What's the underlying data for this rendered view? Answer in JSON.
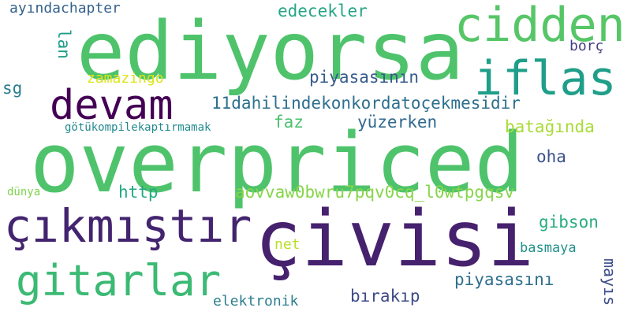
{
  "words": [
    {
      "text": "ediyorsa",
      "color": "#4ec36b"
    },
    {
      "text": "overpriced",
      "color": "#4ec36b"
    },
    {
      "text": "çivisi",
      "color": "#46216e"
    },
    {
      "text": "çıkmıştır",
      "color": "#43246f"
    },
    {
      "text": "cidden",
      "color": "#56c667"
    },
    {
      "text": "iflas",
      "color": "#1f9e89"
    },
    {
      "text": "devam",
      "color": "#440154"
    },
    {
      "text": "gitarlar",
      "color": "#3bba74"
    },
    {
      "text": "11dahilindekonkordatoçekmesidir",
      "color": "#2d6f8e"
    },
    {
      "text": "aovvaw0bwru7pqv0cq_l0wtpgqsv",
      "color": "#86d549"
    },
    {
      "text": "piyasasının",
      "color": "#375b8d"
    },
    {
      "text": "piyasasını",
      "color": "#2e6e8e"
    },
    {
      "text": "yüzerken",
      "color": "#30698e"
    },
    {
      "text": "edecekler",
      "color": "#25a585"
    },
    {
      "text": "batağında",
      "color": "#a8db34"
    },
    {
      "text": "ayındachapter",
      "color": "#34618d"
    },
    {
      "text": "zamazingo",
      "color": "#dde318"
    },
    {
      "text": "götükompilekaptırmamak",
      "color": "#238a8d"
    },
    {
      "text": "bırakıp",
      "color": "#3e4a89"
    },
    {
      "text": "elektronik",
      "color": "#2c7f8e"
    },
    {
      "text": "gibson",
      "color": "#27ad81"
    },
    {
      "text": "basmaya",
      "color": "#21918c"
    },
    {
      "text": "http",
      "color": "#23a983"
    },
    {
      "text": "faz",
      "color": "#4ac16d"
    },
    {
      "text": "oha",
      "color": "#3b528b"
    },
    {
      "text": "borç",
      "color": "#433e85"
    },
    {
      "text": "sg",
      "color": "#287d8e"
    },
    {
      "text": "net",
      "color": "#bade28"
    },
    {
      "text": "dünya",
      "color": "#7fd34e"
    },
    {
      "text": "lan",
      "color": "#1e9c89"
    },
    {
      "text": "mayıs",
      "color": "#3d4d8a"
    }
  ]
}
